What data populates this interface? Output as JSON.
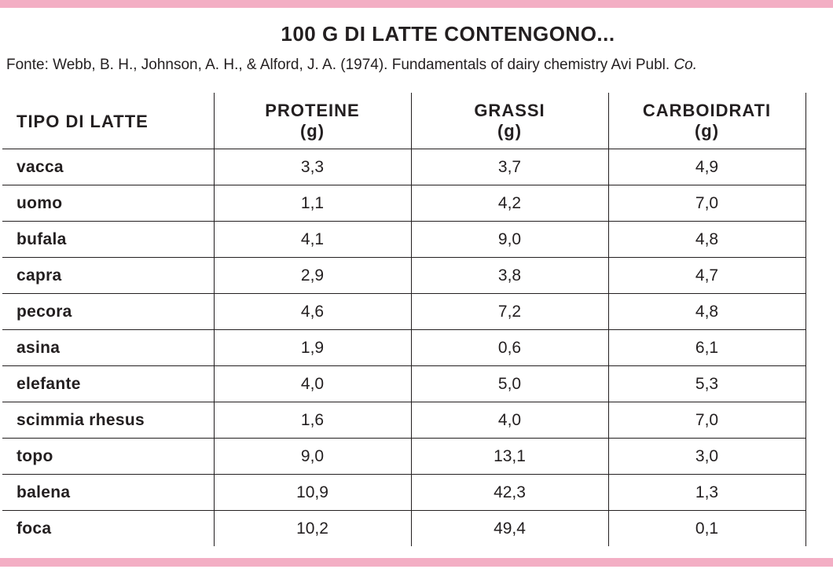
{
  "title": "100 G DI LATTE CONTENGONO...",
  "source": {
    "text": "Fonte: Webb, B. H., Johnson, A. H., & Alford, J. A. (1974). Fundamentals of dairy chemistry Avi Publ.",
    "italic_suffix": "Co."
  },
  "colors": {
    "accent_bar": "#f3aec4",
    "text": "#231f20"
  },
  "table": {
    "headers": [
      {
        "label": "TIPO DI LATTE",
        "unit": ""
      },
      {
        "label": "PROTEINE",
        "unit": "(g)"
      },
      {
        "label": "GRASSI",
        "unit": "(g)"
      },
      {
        "label": "CARBOIDRATI",
        "unit": "(g)"
      }
    ],
    "rows": [
      [
        "vacca",
        "3,3",
        "3,7",
        "4,9"
      ],
      [
        "uomo",
        "1,1",
        "4,2",
        "7,0"
      ],
      [
        "bufala",
        "4,1",
        "9,0",
        "4,8"
      ],
      [
        "capra",
        "2,9",
        "3,8",
        "4,7"
      ],
      [
        "pecora",
        "4,6",
        "7,2",
        "4,8"
      ],
      [
        "asina",
        "1,9",
        "0,6",
        "6,1"
      ],
      [
        "elefante",
        "4,0",
        "5,0",
        "5,3"
      ],
      [
        "scimmia rhesus",
        "1,6",
        "4,0",
        "7,0"
      ],
      [
        "topo",
        "9,0",
        "13,1",
        "3,0"
      ],
      [
        "balena",
        "10,9",
        "42,3",
        "1,3"
      ],
      [
        "foca",
        "10,2",
        "49,4",
        "0,1"
      ]
    ]
  }
}
